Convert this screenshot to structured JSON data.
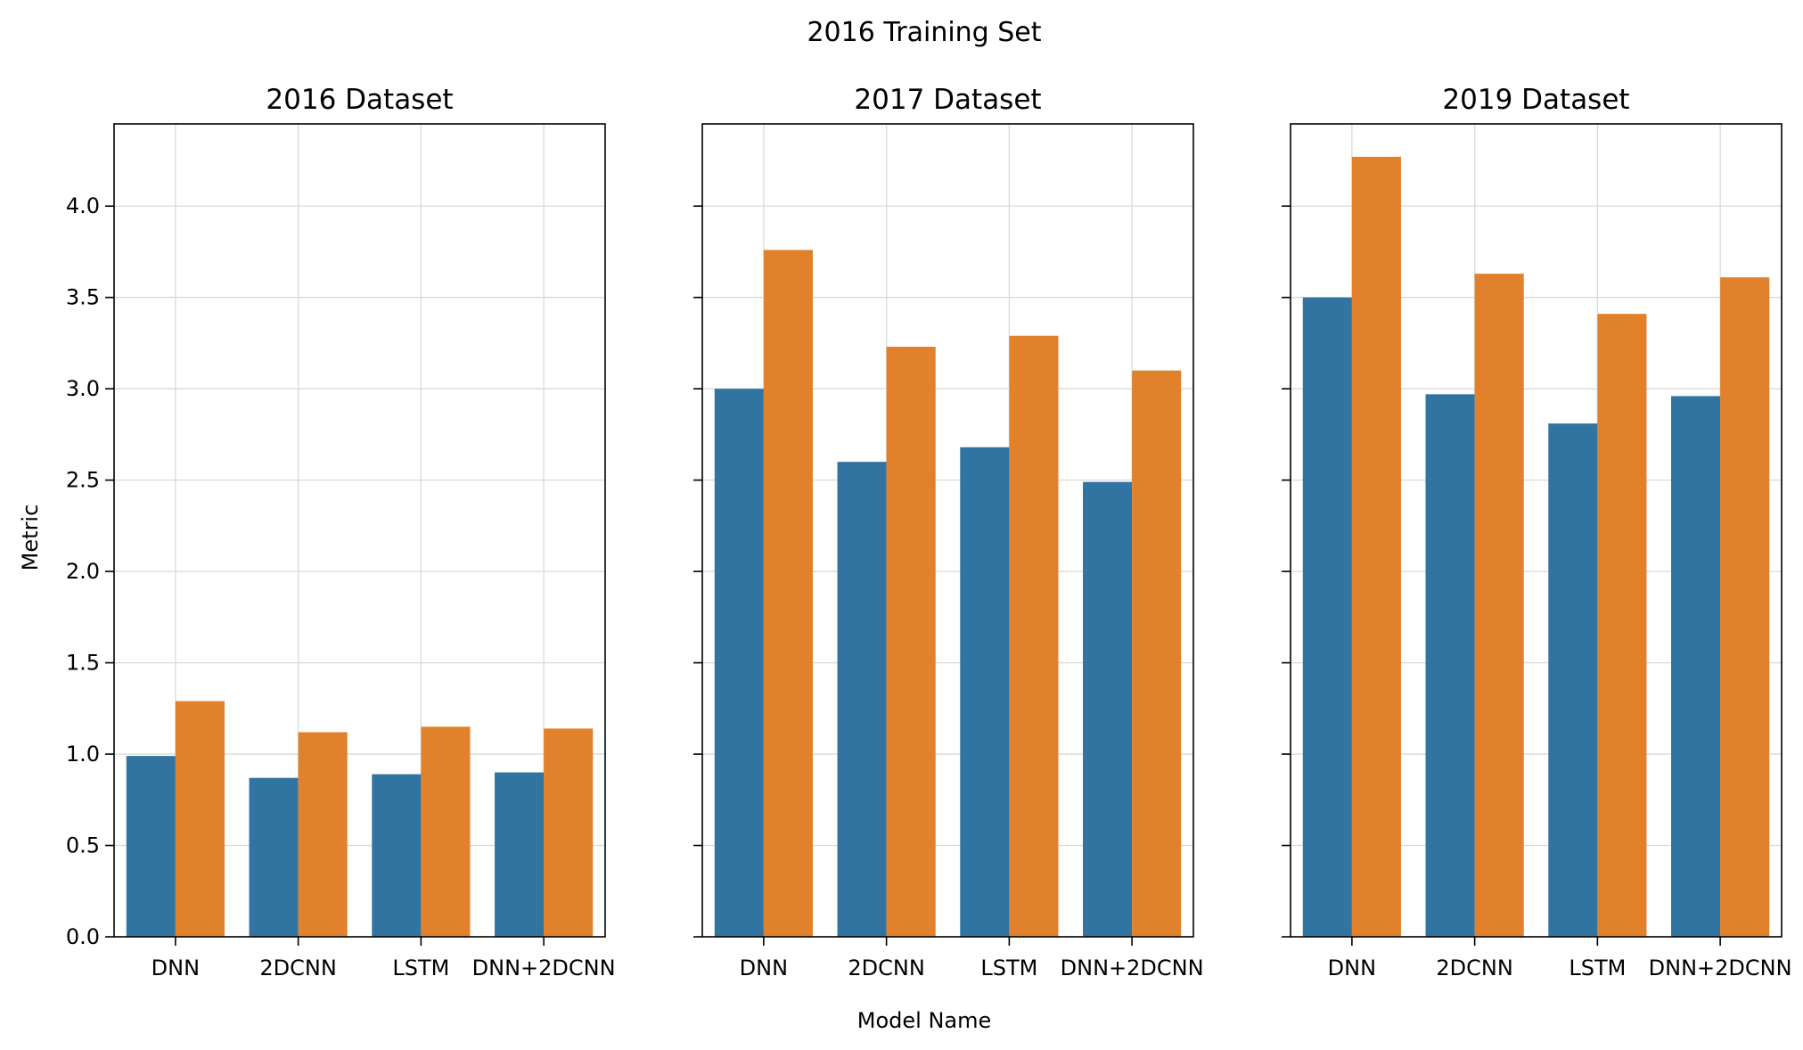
{
  "chart_data": {
    "type": "bar",
    "suptitle": "2016 Training Set",
    "xlabel": "Model Name",
    "ylabel": "Metric",
    "ylim": [
      0,
      4.45
    ],
    "yticks": [
      "0.0",
      "0.5",
      "1.0",
      "1.5",
      "2.0",
      "2.5",
      "3.0",
      "3.5",
      "4.0"
    ],
    "grid": true,
    "colors": [
      "#3274a1",
      "#e1812c"
    ],
    "categories": [
      "DNN",
      "2DCNN",
      "LSTM",
      "DNN+2DCNN"
    ],
    "panels": [
      {
        "title": "2016 Dataset",
        "series": [
          {
            "values": [
              0.99,
              0.87,
              0.89,
              0.9
            ]
          },
          {
            "values": [
              1.29,
              1.12,
              1.15,
              1.14
            ]
          }
        ]
      },
      {
        "title": "2017 Dataset",
        "series": [
          {
            "values": [
              3.0,
              2.6,
              2.68,
              2.49
            ]
          },
          {
            "values": [
              3.76,
              3.23,
              3.29,
              3.1
            ]
          }
        ]
      },
      {
        "title": "2019 Dataset",
        "series": [
          {
            "values": [
              3.5,
              2.97,
              2.81,
              2.96
            ]
          },
          {
            "values": [
              4.27,
              3.63,
              3.41,
              3.61
            ]
          }
        ]
      }
    ]
  }
}
